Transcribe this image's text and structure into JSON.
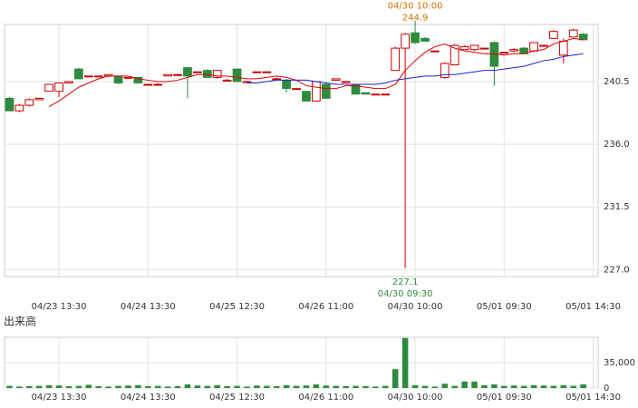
{
  "chart_data": [
    {
      "type": "candlestick",
      "x": [
        0,
        1,
        2,
        3,
        4,
        5,
        6,
        7,
        8,
        9,
        10,
        11,
        12,
        13,
        14,
        15,
        16,
        17,
        18,
        19,
        20,
        21,
        22,
        23,
        24,
        25,
        26,
        27,
        28,
        29,
        30,
        31,
        32,
        33,
        34,
        35,
        36,
        37,
        38,
        39,
        40,
        41,
        42,
        43,
        44,
        45,
        46,
        47,
        48,
        49,
        50,
        51,
        52,
        53,
        54,
        55,
        56,
        57,
        58
      ],
      "open": [
        239.3,
        238.4,
        238.8,
        239.2,
        239.8,
        239.8,
        240.4,
        241.4,
        240.9,
        240.9,
        240.9,
        240.9,
        240.8,
        240.8,
        240.3,
        240.3,
        240.9,
        241.0,
        241.5,
        241.2,
        241.3,
        240.8,
        240.6,
        241.4,
        240.5,
        241.2,
        241.2,
        240.7,
        240.6,
        240.0,
        239.8,
        239.1,
        240.3,
        240.6,
        240.5,
        240.3,
        239.7,
        239.6,
        239.6,
        241.3,
        242.9,
        244.0,
        243.6,
        242.7,
        240.8,
        241.7,
        242.8,
        242.8,
        242.9,
        243.3,
        242.6,
        242.7,
        242.9,
        242.7,
        243.1,
        243.6,
        242.4,
        243.7,
        243.9
      ],
      "high": [
        239.4,
        238.9,
        239.3,
        239.3,
        240.3,
        240.4,
        240.5,
        241.5,
        240.9,
        240.9,
        241.0,
        240.9,
        240.8,
        240.8,
        240.3,
        240.4,
        241.0,
        241.0,
        241.5,
        241.2,
        241.4,
        241.3,
        240.7,
        241.4,
        240.5,
        241.2,
        241.2,
        240.8,
        240.7,
        240.0,
        239.8,
        240.5,
        240.4,
        240.7,
        240.5,
        240.3,
        239.7,
        239.6,
        239.6,
        243.0,
        244.0,
        244.9,
        243.7,
        242.7,
        241.9,
        243.2,
        243.1,
        243.1,
        242.9,
        243.4,
        242.6,
        242.9,
        243.0,
        243.3,
        243.1,
        244.2,
        243.6,
        244.3,
        244.0
      ],
      "low": [
        238.4,
        238.3,
        238.7,
        239.2,
        239.8,
        239.4,
        240.4,
        240.7,
        240.9,
        240.9,
        240.8,
        240.3,
        240.8,
        240.4,
        240.3,
        240.3,
        240.9,
        241.0,
        239.3,
        241.2,
        240.8,
        240.7,
        240.6,
        240.5,
        240.5,
        241.2,
        241.2,
        240.7,
        239.7,
        240.0,
        239.1,
        239.1,
        239.3,
        240.6,
        240.5,
        239.6,
        239.6,
        239.6,
        239.6,
        241.3,
        227.1,
        243.2,
        243.4,
        242.7,
        240.7,
        241.7,
        242.8,
        242.7,
        242.9,
        240.2,
        242.6,
        242.6,
        242.5,
        242.6,
        243.1,
        243.6,
        241.8,
        243.7,
        243.5
      ],
      "close": [
        238.4,
        238.8,
        239.2,
        239.3,
        240.3,
        240.4,
        240.5,
        240.7,
        240.9,
        240.9,
        241.0,
        240.4,
        240.8,
        240.4,
        240.3,
        240.3,
        241.0,
        241.0,
        240.9,
        241.2,
        240.8,
        241.3,
        240.6,
        240.5,
        240.5,
        241.2,
        241.2,
        240.7,
        240.0,
        240.0,
        239.1,
        240.5,
        239.3,
        240.7,
        240.5,
        239.6,
        239.6,
        239.6,
        239.6,
        242.9,
        243.9,
        243.3,
        243.4,
        242.7,
        241.8,
        243.1,
        243.0,
        243.1,
        242.9,
        241.6,
        242.6,
        242.8,
        242.5,
        243.3,
        243.1,
        244.1,
        243.4,
        244.2,
        243.5
      ],
      "up_color": "#cc0000",
      "down_color": "#2e8b3e",
      "series": [
        {
          "color": "#e00000",
          "values": [
            null,
            null,
            null,
            null,
            238.7,
            239.1,
            239.6,
            240.1,
            240.4,
            240.7,
            240.9,
            240.9,
            240.9,
            240.7,
            240.6,
            240.5,
            240.5,
            240.6,
            240.8,
            241.0,
            241.0,
            240.9,
            240.9,
            240.8,
            240.7,
            240.7,
            240.8,
            240.9,
            240.8,
            240.6,
            240.2,
            240.1,
            240.0,
            240.0,
            240.2,
            240.2,
            240.1,
            240.0,
            240.0,
            240.3,
            241.3,
            242.0,
            242.6,
            243.0,
            243.2,
            242.9,
            242.7,
            242.6,
            242.5,
            242.5,
            242.4,
            242.5,
            242.5,
            242.7,
            242.8,
            243.2,
            243.4,
            243.6,
            243.5
          ]
        },
        {
          "color": "#2222cc",
          "values": [
            null,
            null,
            null,
            null,
            null,
            null,
            null,
            null,
            null,
            null,
            null,
            null,
            null,
            null,
            null,
            null,
            null,
            null,
            null,
            null,
            null,
            null,
            null,
            null,
            240.4,
            240.4,
            240.5,
            240.6,
            240.6,
            240.6,
            240.6,
            240.5,
            240.4,
            240.3,
            240.3,
            240.3,
            240.3,
            240.3,
            240.4,
            240.6,
            240.7,
            240.8,
            240.9,
            240.9,
            241.0,
            241.0,
            241.1,
            241.2,
            241.3,
            241.3,
            241.4,
            241.5,
            241.6,
            241.8,
            242.0,
            242.1,
            242.3,
            242.4,
            242.5
          ]
        }
      ],
      "xlim": [
        -0.5,
        59.5
      ],
      "xticks": [
        {
          "value": 5,
          "label": "04/23 13:30"
        },
        {
          "value": 14,
          "label": "04/24 13:30"
        },
        {
          "value": 23,
          "label": "04/25 12:30"
        },
        {
          "value": 32,
          "label": "04/26 11:00"
        },
        {
          "value": 41,
          "label": "04/30 10:00"
        },
        {
          "value": 50,
          "label": "05/01 09:30"
        },
        {
          "value": 59,
          "label": "05/01 14:30"
        }
      ],
      "ylim": [
        226.5,
        244.6
      ],
      "yticks": [
        {
          "value": 227,
          "label": "227.0"
        },
        231.5,
        {
          "value": 236,
          "label": "236.0"
        },
        240.5
      ],
      "grid": true,
      "annotations": [
        {
          "label": "04/30 10:00",
          "value": 244.9,
          "x": 41,
          "color": "#d07000",
          "position": "above"
        },
        {
          "label": "04/30 09:30",
          "value": 227.1,
          "x": 40,
          "color": "#2e8b3e",
          "position": "below"
        }
      ]
    },
    {
      "type": "bar",
      "title": "出来高",
      "color": "#2e8b3e",
      "values": [
        3000,
        2000,
        2500,
        3000,
        4000,
        3500,
        2500,
        3000,
        4500,
        2500,
        2000,
        3000,
        3500,
        4000,
        2500,
        3000,
        2000,
        2500,
        5000,
        3500,
        3000,
        4000,
        2500,
        3000,
        2000,
        3500,
        3000,
        2500,
        4000,
        3000,
        3500,
        5000,
        3500,
        3000,
        2500,
        3000,
        2500,
        2000,
        3000,
        26000,
        69000,
        4000,
        3000,
        2000,
        6000,
        3000,
        9000,
        9000,
        4000,
        5000,
        3000,
        3500,
        3000,
        4000,
        3500,
        3000,
        4000,
        3000,
        5000
      ],
      "ylim": [
        0,
        70000
      ],
      "yticks": [
        0,
        {
          "value": 35000,
          "label": "35,000"
        }
      ],
      "grid": true
    }
  ]
}
